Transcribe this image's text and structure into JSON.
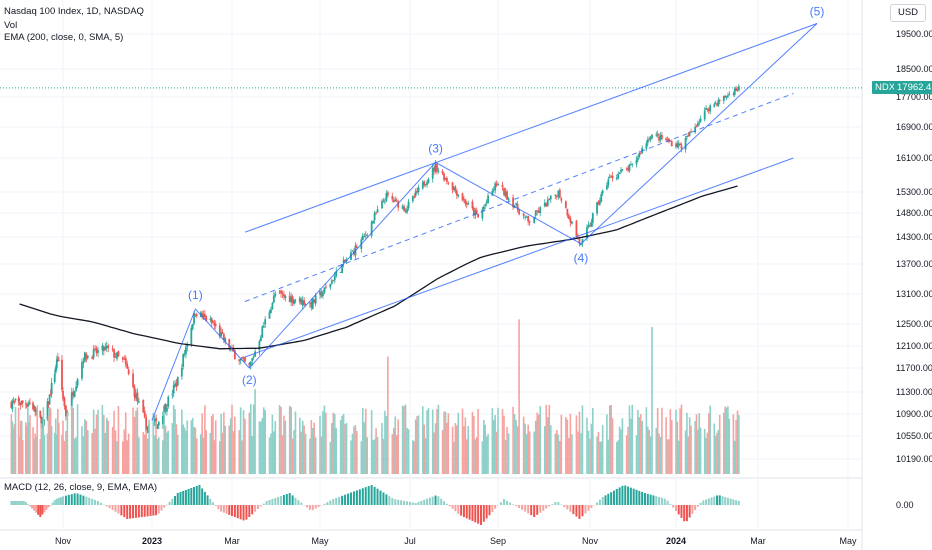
{
  "chart_data": {
    "type": "candlestick",
    "title": "Nasdaq 100 Index, 1D, NASDAQ",
    "indicators": [
      "Vol",
      "EMA (200, close, 0, SMA, 5)",
      "MACD (12, 26, close, 9, EMA, EMA)"
    ],
    "currency": "USD",
    "symbol": "NDX",
    "last_price": "17962.41",
    "y_ticks": [
      "19500.00",
      "18500.00",
      "17700.00",
      "16900.00",
      "16100.00",
      "15300.00",
      "14800.00",
      "14300.00",
      "13700.00",
      "13100.00",
      "12500.00",
      "12100.00",
      "11700.00",
      "11300.00",
      "10900.00",
      "10550.00",
      "10190.00"
    ],
    "macd_tick": "0.00",
    "x_ticks": [
      "Nov",
      "2023",
      "Mar",
      "May",
      "Jul",
      "Sep",
      "Nov",
      "2024",
      "Mar",
      "May"
    ],
    "price_path": [
      [
        "2022-10-01",
        11100
      ],
      [
        "2022-10-13",
        10700
      ],
      [
        "2022-10-27",
        11900
      ],
      [
        "2022-11-03",
        10900
      ],
      [
        "2022-11-15",
        11900
      ],
      [
        "2022-12-01",
        12050
      ],
      [
        "2022-12-13",
        11800
      ],
      [
        "2022-12-28",
        10700
      ],
      [
        "2023-01-05",
        10750
      ],
      [
        "2023-01-20",
        11500
      ],
      [
        "2023-02-02",
        12750
      ],
      [
        "2023-02-15",
        12500
      ],
      [
        "2023-03-01",
        12000
      ],
      [
        "2023-03-13",
        11700
      ],
      [
        "2023-03-31",
        13100
      ],
      [
        "2023-04-25",
        12900
      ],
      [
        "2023-05-05",
        13200
      ],
      [
        "2023-05-31",
        14300
      ],
      [
        "2023-06-15",
        15200
      ],
      [
        "2023-06-28",
        14900
      ],
      [
        "2023-07-19",
        15900
      ],
      [
        "2023-08-03",
        15300
      ],
      [
        "2023-08-18",
        14700
      ],
      [
        "2023-08-31",
        15500
      ],
      [
        "2023-09-21",
        14600
      ],
      [
        "2023-10-11",
        15300
      ],
      [
        "2023-10-26",
        14100
      ],
      [
        "2023-11-14",
        15600
      ],
      [
        "2023-12-01",
        15900
      ],
      [
        "2023-12-14",
        16700
      ],
      [
        "2024-01-05",
        16400
      ],
      [
        "2024-01-24",
        17400
      ],
      [
        "2024-02-02",
        17600
      ],
      [
        "2024-02-16",
        17962
      ]
    ],
    "ema200_path": [
      [
        "2022-09-20",
        12900
      ],
      [
        "2022-10-20",
        12700
      ],
      [
        "2022-11-20",
        12550
      ],
      [
        "2022-12-20",
        12320
      ],
      [
        "2023-01-20",
        12150
      ],
      [
        "2023-02-20",
        12050
      ],
      [
        "2023-03-20",
        12060
      ],
      [
        "2023-04-20",
        12200
      ],
      [
        "2023-05-20",
        12450
      ],
      [
        "2023-06-20",
        12850
      ],
      [
        "2023-07-20",
        13400
      ],
      [
        "2023-08-20",
        13850
      ],
      [
        "2023-09-20",
        14100
      ],
      [
        "2023-10-20",
        14250
      ],
      [
        "2023-11-20",
        14450
      ],
      [
        "2023-12-20",
        14800
      ],
      [
        "2024-01-20",
        15200
      ],
      [
        "2024-02-16",
        15450
      ]
    ],
    "wave_points": [
      {
        "label": "(1)",
        "date": "2023-02-02",
        "value": 12800
      },
      {
        "label": "(2)",
        "date": "2023-03-13",
        "value": 11700
      },
      {
        "label": "(3)",
        "date": "2023-07-19",
        "value": 16000
      },
      {
        "label": "(4)",
        "date": "2023-10-26",
        "value": 14150
      },
      {
        "label": "(5)",
        "date": "2024-04-10",
        "value": 19800
      }
    ],
    "trend_lines": [
      {
        "from": [
          "2023-03-10",
          14400
        ],
        "to": [
          "2024-04-10",
          19800
        ],
        "style": "solid"
      },
      {
        "from": [
          "2023-03-10",
          12950
        ],
        "to": [
          "2024-03-25",
          17800
        ],
        "style": "dashed"
      },
      {
        "from": [
          "2023-03-10",
          11900
        ],
        "to": [
          "2024-03-25",
          16100
        ],
        "style": "solid"
      },
      {
        "from": [
          "2023-10-26",
          14150
        ],
        "to": [
          "2024-04-10",
          19800
        ],
        "style": "solid"
      }
    ],
    "volume_spikes": [
      [
        "2023-03-17",
        2.2
      ],
      [
        "2023-06-16",
        2.0
      ],
      [
        "2023-09-15",
        2.3
      ],
      [
        "2023-12-15",
        2.4
      ]
    ],
    "macd_shape": [
      [
        "2022-09-25",
        0.2
      ],
      [
        "2022-10-10",
        -0.6
      ],
      [
        "2022-10-25",
        0.3
      ],
      [
        "2022-11-10",
        0.6
      ],
      [
        "2022-11-25",
        0.2
      ],
      [
        "2022-12-15",
        -0.7
      ],
      [
        "2023-01-05",
        -0.5
      ],
      [
        "2023-01-20",
        0.6
      ],
      [
        "2023-02-05",
        1.0
      ],
      [
        "2023-02-20",
        -0.3
      ],
      [
        "2023-03-10",
        -0.8
      ],
      [
        "2023-03-25",
        0.2
      ],
      [
        "2023-04-10",
        0.6
      ],
      [
        "2023-04-25",
        -0.3
      ],
      [
        "2023-05-10",
        0.3
      ],
      [
        "2023-06-05",
        1.0
      ],
      [
        "2023-06-20",
        0.3
      ],
      [
        "2023-07-05",
        0.1
      ],
      [
        "2023-07-20",
        0.5
      ],
      [
        "2023-08-05",
        -0.5
      ],
      [
        "2023-08-20",
        -1.0
      ],
      [
        "2023-09-05",
        0.3
      ],
      [
        "2023-09-25",
        -0.6
      ],
      [
        "2023-10-10",
        0.2
      ],
      [
        "2023-10-25",
        -0.7
      ],
      [
        "2023-11-10",
        0.4
      ],
      [
        "2023-11-25",
        1.0
      ],
      [
        "2023-12-10",
        0.6
      ],
      [
        "2023-12-25",
        0.3
      ],
      [
        "2024-01-08",
        -0.9
      ],
      [
        "2024-01-20",
        0.2
      ],
      [
        "2024-02-01",
        0.5
      ],
      [
        "2024-02-16",
        0.2
      ]
    ]
  },
  "legend": {
    "title": "Nasdaq 100 Index, 1D, NASDAQ",
    "vol": "Vol",
    "ema": "EMA (200, close, 0, SMA, 5)",
    "macd": "MACD (12, 26, close, 9, EMA, EMA)"
  },
  "ui": {
    "currency": "USD",
    "symbol_tag": "NDX",
    "price_tag": "17962.41"
  },
  "colors": {
    "up": "#26a69a",
    "down": "#ef5350",
    "volume_up": "#8fd0c9",
    "volume_down": "#f5a3a1",
    "trend": "#2962ff",
    "ema": "#131722",
    "grid": "#f0f3fa"
  }
}
